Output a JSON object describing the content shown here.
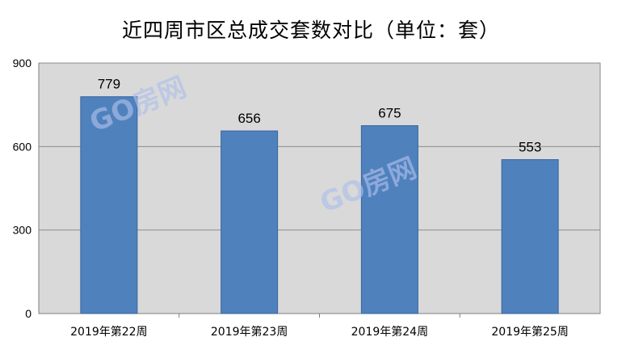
{
  "chart_data": {
    "type": "bar",
    "title": "近四周市区总成交套数对比（单位：套）",
    "categories": [
      "2019年第22周",
      "2019年第23周",
      "2019年第24周",
      "2019年第25周"
    ],
    "values": [
      779,
      656,
      675,
      553
    ],
    "ylim": [
      0,
      900
    ],
    "yticks": [
      0,
      300,
      600,
      900
    ],
    "xlabel": "",
    "ylabel": "",
    "grid": true,
    "legend": "none",
    "bar_color": "#4f81bd",
    "bar_border_color": "#3a64a0",
    "plot_background": "#d9d9d9"
  },
  "watermark": {
    "text": "GO房网",
    "color": "#aebfea"
  }
}
